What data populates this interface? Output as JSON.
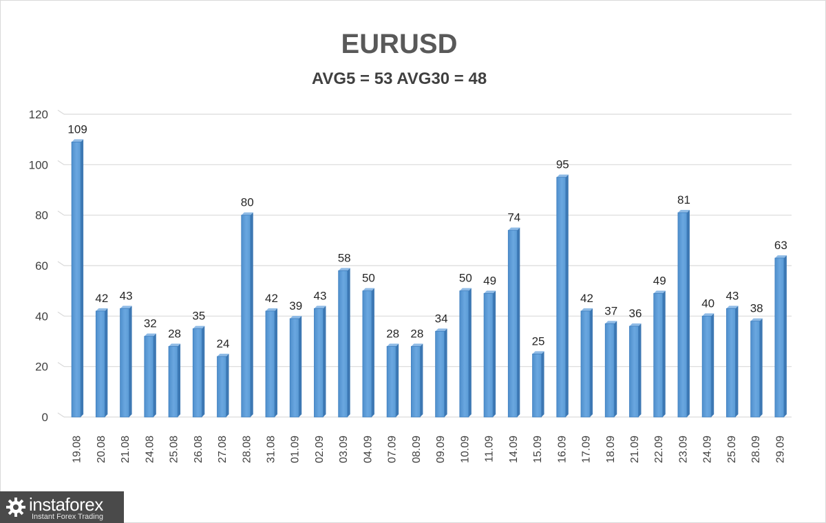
{
  "chart_data": {
    "type": "bar",
    "title": "EURUSD",
    "subtitle": "AVG5 = 53 AVG30 = 48",
    "categories": [
      "19.08",
      "20.08",
      "21.08",
      "24.08",
      "25.08",
      "26.08",
      "27.08",
      "28.08",
      "31.08",
      "01.09",
      "02.09",
      "03.09",
      "04.09",
      "07.09",
      "08.09",
      "09.09",
      "10.09",
      "11.09",
      "14.09",
      "15.09",
      "16.09",
      "17.09",
      "18.09",
      "21.09",
      "22.09",
      "23.09",
      "24.09",
      "25.09",
      "28.09",
      "29.09"
    ],
    "values": [
      109,
      42,
      43,
      32,
      28,
      35,
      24,
      80,
      42,
      39,
      43,
      58,
      50,
      28,
      28,
      34,
      50,
      49,
      74,
      25,
      95,
      42,
      37,
      36,
      49,
      81,
      40,
      43,
      38,
      63
    ],
    "ylim": [
      0,
      120
    ],
    "yticks": [
      0,
      20,
      40,
      60,
      80,
      100,
      120
    ],
    "xlabel": "",
    "ylabel": "",
    "grid": true,
    "data_labels": true,
    "bar_color": "#5b9bd5"
  },
  "watermark": {
    "brand": "instaforex",
    "tagline": "Instant Forex Trading",
    "icon": "gear-logo-icon"
  }
}
